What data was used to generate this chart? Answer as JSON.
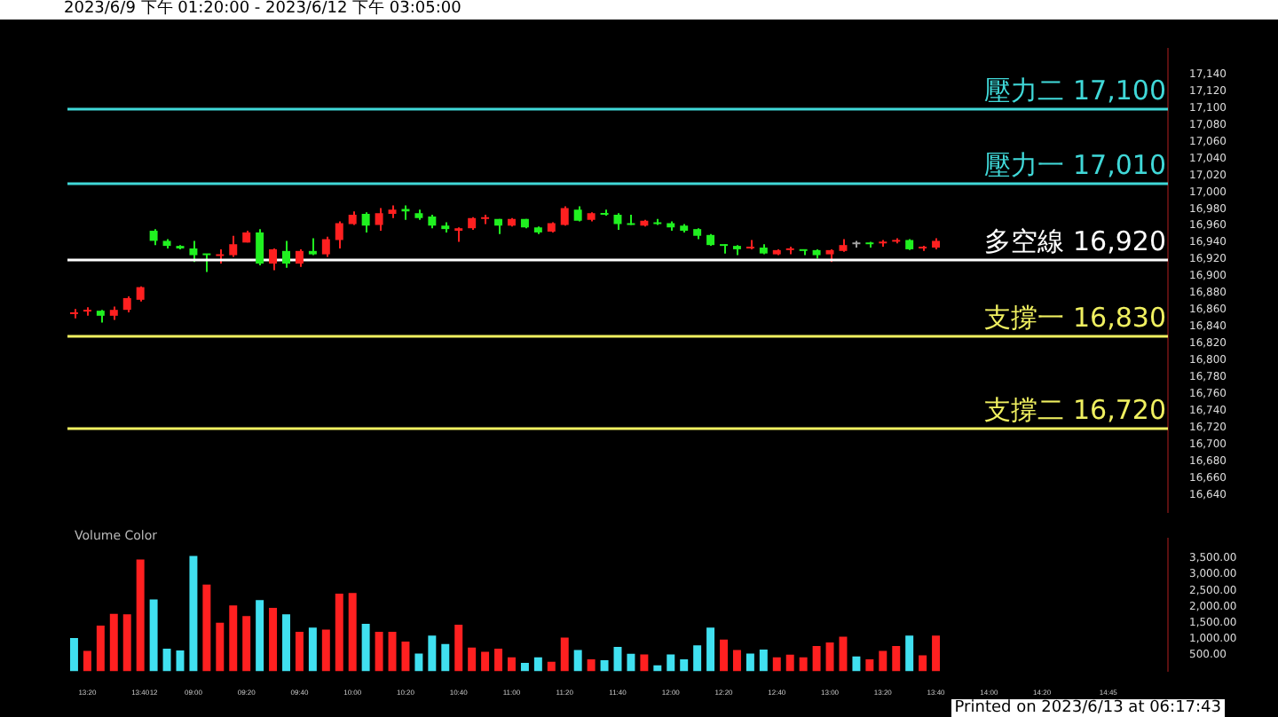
{
  "chart_data": [
    {
      "type": "candlestick",
      "title": "2023/6/9 下午 01:20:00 - 2023/6/12 下午 03:05:00",
      "tick_labels": "y",
      "legend": false,
      "categories": [
        null,
        null,
        null,
        null,
        null,
        null,
        null,
        null,
        null,
        null,
        null,
        null,
        null,
        null,
        null,
        null,
        null,
        null,
        null,
        null,
        null,
        null,
        null,
        null,
        null,
        null,
        null,
        null,
        null,
        null,
        null,
        null,
        null,
        null,
        null,
        null,
        null,
        null,
        null,
        null,
        null,
        null,
        null,
        null,
        null,
        null,
        null,
        null,
        null,
        null,
        null,
        null,
        null,
        null,
        null,
        null,
        null,
        null,
        null,
        null,
        null,
        null,
        null,
        null,
        null,
        null,
        null,
        null,
        null,
        null,
        null,
        null,
        null,
        null,
        null,
        null,
        null,
        null,
        null,
        null,
        null,
        null,
        null
      ],
      "ohlc": [
        [
          16855,
          16861,
          16850,
          16856
        ],
        [
          16858,
          16863,
          16853,
          16859
        ],
        [
          16859,
          16860,
          16845,
          16853
        ],
        [
          16853,
          16864,
          16848,
          16860
        ],
        [
          16860,
          16876,
          16857,
          16874
        ],
        [
          16872,
          16888,
          16870,
          16887
        ],
        [
          16954,
          16956,
          16937,
          16942
        ],
        [
          16942,
          16944,
          16933,
          16936
        ],
        [
          16936,
          16937,
          16932,
          16933
        ],
        [
          16933,
          16942,
          16917,
          16925
        ],
        [
          16926,
          16926,
          16905,
          16925
        ],
        [
          16924,
          16932,
          16915,
          16926
        ],
        [
          16925,
          16948,
          16923,
          16938
        ],
        [
          16940,
          16954,
          16940,
          16952
        ],
        [
          16952,
          16956,
          16913,
          16915
        ],
        [
          16915,
          16933,
          16907,
          16932
        ],
        [
          16930,
          16942,
          16910,
          16915
        ],
        [
          16915,
          16932,
          16911,
          16930
        ],
        [
          16930,
          16945,
          16925,
          16926
        ],
        [
          16926,
          16947,
          16923,
          16944
        ],
        [
          16943,
          16965,
          16933,
          16963
        ],
        [
          16962,
          16977,
          16961,
          16973
        ],
        [
          16974,
          16976,
          16952,
          16960
        ],
        [
          16961,
          16981,
          16954,
          16975
        ],
        [
          16974,
          16984,
          16969,
          16979
        ],
        [
          16980,
          16984,
          16967,
          16977
        ],
        [
          16975,
          16979,
          16967,
          16969
        ],
        [
          16971,
          16973,
          16957,
          16960
        ],
        [
          16960,
          16964,
          16952,
          16956
        ],
        [
          16954,
          16958,
          16941,
          16957
        ],
        [
          16957,
          16970,
          16955,
          16969
        ],
        [
          16968,
          16973,
          16962,
          16969
        ],
        [
          16968,
          16968,
          16950,
          16960
        ],
        [
          16960,
          16969,
          16959,
          16968
        ],
        [
          16968,
          16968,
          16957,
          16958
        ],
        [
          16958,
          16959,
          16950,
          16952
        ],
        [
          16953,
          16964,
          16952,
          16963
        ],
        [
          16961,
          16983,
          16960,
          16981
        ],
        [
          16979,
          16983,
          16965,
          16966
        ],
        [
          16967,
          16976,
          16965,
          16975
        ],
        [
          16975,
          16979,
          16972,
          16973
        ],
        [
          16973,
          16975,
          16955,
          16962
        ],
        [
          16963,
          16973,
          16961,
          16961
        ],
        [
          16960,
          16967,
          16959,
          16966
        ],
        [
          16964,
          16968,
          16961,
          16962
        ],
        [
          16963,
          16965,
          16954,
          16958
        ],
        [
          16960,
          16962,
          16952,
          16954
        ],
        [
          16956,
          16957,
          16944,
          16948
        ],
        [
          16949,
          16950,
          16936,
          16937
        ],
        [
          16937,
          16938,
          16927,
          16936
        ],
        [
          16936,
          16937,
          16925,
          16932
        ],
        [
          16933,
          16943,
          16932,
          16934
        ],
        [
          16934,
          16938,
          16926,
          16927
        ],
        [
          16926,
          16932,
          16925,
          16931
        ],
        [
          16931,
          16935,
          16926,
          16932
        ],
        [
          16931,
          16932,
          16925,
          16930
        ],
        [
          16931,
          16932,
          16921,
          16925
        ],
        [
          16926,
          16932,
          16917,
          16931
        ],
        [
          16930,
          16944,
          16929,
          16937
        ],
        [
          16938,
          16942,
          16934,
          16938
        ],
        [
          16939,
          16941,
          16934,
          16938
        ],
        [
          16939,
          16943,
          16935,
          16940
        ],
        [
          16941,
          16945,
          16939,
          16942
        ],
        [
          16943,
          16944,
          16931,
          16932
        ],
        [
          16933,
          16936,
          16930,
          16934
        ],
        [
          16934,
          16945,
          16932,
          16942
        ],
        null,
        null,
        null,
        null,
        null,
        null,
        null,
        null,
        null,
        null,
        null,
        null,
        null,
        null,
        null,
        null,
        null
      ],
      "colors": [
        "#ff2020",
        "#ff2020",
        "#20f020",
        "#ff2020",
        "#ff2020",
        "#ff2020",
        "#20f020",
        "#20f020",
        "#20f020",
        "#20f020",
        "#20f020",
        "#ff2020",
        "#ff2020",
        "#ff2020",
        "#20f020",
        "#ff2020",
        "#20f020",
        "#ff2020",
        "#20f020",
        "#ff2020",
        "#ff2020",
        "#ff2020",
        "#20f020",
        "#ff2020",
        "#ff2020",
        "#20f020",
        "#20f020",
        "#20f020",
        "#20f020",
        "#ff2020",
        "#ff2020",
        "#ff2020",
        "#20f020",
        "#ff2020",
        "#20f020",
        "#20f020",
        "#ff2020",
        "#ff2020",
        "#20f020",
        "#ff2020",
        "#20f020",
        "#20f020",
        "#20f020",
        "#ff2020",
        "#20f020",
        "#20f020",
        "#20f020",
        "#20f020",
        "#20f020",
        "#20f020",
        "#20f020",
        "#ff2020",
        "#20f020",
        "#ff2020",
        "#ff2020",
        "#20f020",
        "#20f020",
        "#ff2020",
        "#ff2020",
        "#a0a0a0",
        "#20f020",
        "#ff2020",
        "#ff2020",
        "#20f020",
        "#ff2020",
        "#ff2020",
        null,
        null,
        null,
        null,
        null,
        null,
        null,
        null,
        null,
        null,
        null,
        null,
        null,
        null,
        null,
        null,
        null
      ],
      "ylim": [
        16620,
        17170
      ],
      "yticks": [
        {
          "value": 16640,
          "label": "16,640"
        },
        {
          "value": 16660,
          "label": "16,660"
        },
        {
          "value": 16680,
          "label": "16,680"
        },
        {
          "value": 16700,
          "label": "16,700"
        },
        {
          "value": 16720,
          "label": "16,720"
        },
        {
          "value": 16740,
          "label": "16,740"
        },
        {
          "value": 16760,
          "label": "16,760"
        },
        {
          "value": 16780,
          "label": "16,780"
        },
        {
          "value": 16800,
          "label": "16,800"
        },
        {
          "value": 16820,
          "label": "16,820"
        },
        {
          "value": 16840,
          "label": "16,840"
        },
        {
          "value": 16860,
          "label": "16,860"
        },
        {
          "value": 16880,
          "label": "16,880"
        },
        {
          "value": 16900,
          "label": "16,900"
        },
        {
          "value": 16920,
          "label": "16,920"
        },
        {
          "value": 16940,
          "label": "16,940"
        },
        {
          "value": 16960,
          "label": "16,960"
        },
        {
          "value": 16980,
          "label": "16,980"
        },
        {
          "value": 17000,
          "label": "17,000"
        },
        {
          "value": 17020,
          "label": "17,020"
        },
        {
          "value": 17040,
          "label": "17,040"
        },
        {
          "value": 17060,
          "label": "17,060"
        },
        {
          "value": 17080,
          "label": "17,080"
        },
        {
          "value": 17100,
          "label": "17,100"
        },
        {
          "value": 17120,
          "label": "17,120"
        },
        {
          "value": 17140,
          "label": "17,140"
        }
      ],
      "ref_lines": [
        {
          "axis": "y",
          "value": 17100,
          "label": "壓力二 17,100",
          "color": "#40d8d8"
        },
        {
          "axis": "y",
          "value": 17010,
          "label": "壓力一 17,010",
          "color": "#40d8d8"
        },
        {
          "axis": "y",
          "value": 16920,
          "label": "多空線 16,920",
          "color": "#ffffff"
        },
        {
          "axis": "y",
          "value": 16830,
          "label": "支撐一 16,830",
          "color": "#f0f060"
        },
        {
          "axis": "y",
          "value": 16720,
          "label": "支撐二 16,720",
          "color": "#f0f060"
        }
      ]
    },
    {
      "type": "bar",
      "title": "Volume Color",
      "legend": false,
      "annotations": [
        "Printed on 2023/6/13 at 06:17:43"
      ],
      "categories": [
        null,
        "13:20",
        null,
        null,
        null,
        "13:40",
        "12",
        null,
        null,
        "09:00",
        null,
        null,
        null,
        "09:20",
        null,
        null,
        null,
        "09:40",
        null,
        null,
        null,
        "10:00",
        null,
        null,
        null,
        "10:20",
        null,
        null,
        null,
        "10:40",
        null,
        null,
        null,
        "11:00",
        null,
        null,
        null,
        "11:20",
        null,
        null,
        null,
        "11:40",
        null,
        null,
        null,
        "12:00",
        null,
        null,
        null,
        "12:20",
        null,
        null,
        null,
        "12:40",
        null,
        null,
        null,
        "13:00",
        null,
        null,
        null,
        "13:20",
        null,
        null,
        null,
        "13:40",
        null,
        null,
        null,
        "14:00",
        null,
        null,
        null,
        "14:20",
        null,
        null,
        null,
        null,
        "14:45",
        null,
        null,
        null,
        null
      ],
      "values": [
        1030,
        630,
        1410,
        1780,
        1760,
        3460,
        2220,
        700,
        640,
        3570,
        2680,
        1500,
        2040,
        1710,
        2200,
        1960,
        1760,
        1220,
        1350,
        1290,
        2400,
        2420,
        1470,
        1220,
        1220,
        920,
        550,
        1100,
        840,
        1440,
        730,
        600,
        700,
        430,
        260,
        430,
        290,
        1040,
        660,
        370,
        340,
        750,
        540,
        520,
        180,
        520,
        370,
        800,
        1350,
        980,
        660,
        550,
        670,
        430,
        510,
        430,
        780,
        890,
        1070,
        460,
        370,
        630,
        780,
        1100,
        490,
        1100,
        null,
        null,
        null,
        null,
        null,
        null,
        null,
        null,
        null,
        null,
        null,
        null,
        null,
        null,
        null,
        null,
        null
      ],
      "colors": [
        "#40e0f0",
        "#ff2020",
        "#ff2020",
        "#ff2020",
        "#ff2020",
        "#ff2020",
        "#40e0f0",
        "#40e0f0",
        "#40e0f0",
        "#40e0f0",
        "#ff2020",
        "#ff2020",
        "#ff2020",
        "#ff2020",
        "#40e0f0",
        "#ff2020",
        "#40e0f0",
        "#ff2020",
        "#40e0f0",
        "#ff2020",
        "#ff2020",
        "#ff2020",
        "#40e0f0",
        "#ff2020",
        "#ff2020",
        "#ff2020",
        "#40e0f0",
        "#40e0f0",
        "#40e0f0",
        "#ff2020",
        "#ff2020",
        "#ff2020",
        "#ff2020",
        "#ff2020",
        "#40e0f0",
        "#40e0f0",
        "#ff2020",
        "#ff2020",
        "#40e0f0",
        "#ff2020",
        "#40e0f0",
        "#40e0f0",
        "#40e0f0",
        "#ff2020",
        "#40e0f0",
        "#40e0f0",
        "#40e0f0",
        "#40e0f0",
        "#40e0f0",
        "#ff2020",
        "#ff2020",
        "#40e0f0",
        "#40e0f0",
        "#ff2020",
        "#ff2020",
        "#ff2020",
        "#ff2020",
        "#ff2020",
        "#ff2020",
        "#40e0f0",
        "#ff2020",
        "#ff2020",
        "#ff2020",
        "#40e0f0",
        "#ff2020",
        "#ff2020",
        null,
        null,
        null,
        null,
        null,
        null,
        null,
        null,
        null,
        null,
        null,
        null,
        null,
        null,
        null,
        null,
        null
      ],
      "ylim": [
        0,
        4100
      ],
      "yticks": [
        {
          "value": 500,
          "label": "500.00"
        },
        {
          "value": 1000,
          "label": "1,000.00"
        },
        {
          "value": 1500,
          "label": "1,500.00"
        },
        {
          "value": 2000,
          "label": "2,000.00"
        },
        {
          "value": 2500,
          "label": "2,500.00"
        },
        {
          "value": 3000,
          "label": "3,000.00"
        },
        {
          "value": 3500,
          "label": "3,500.00"
        }
      ]
    }
  ]
}
